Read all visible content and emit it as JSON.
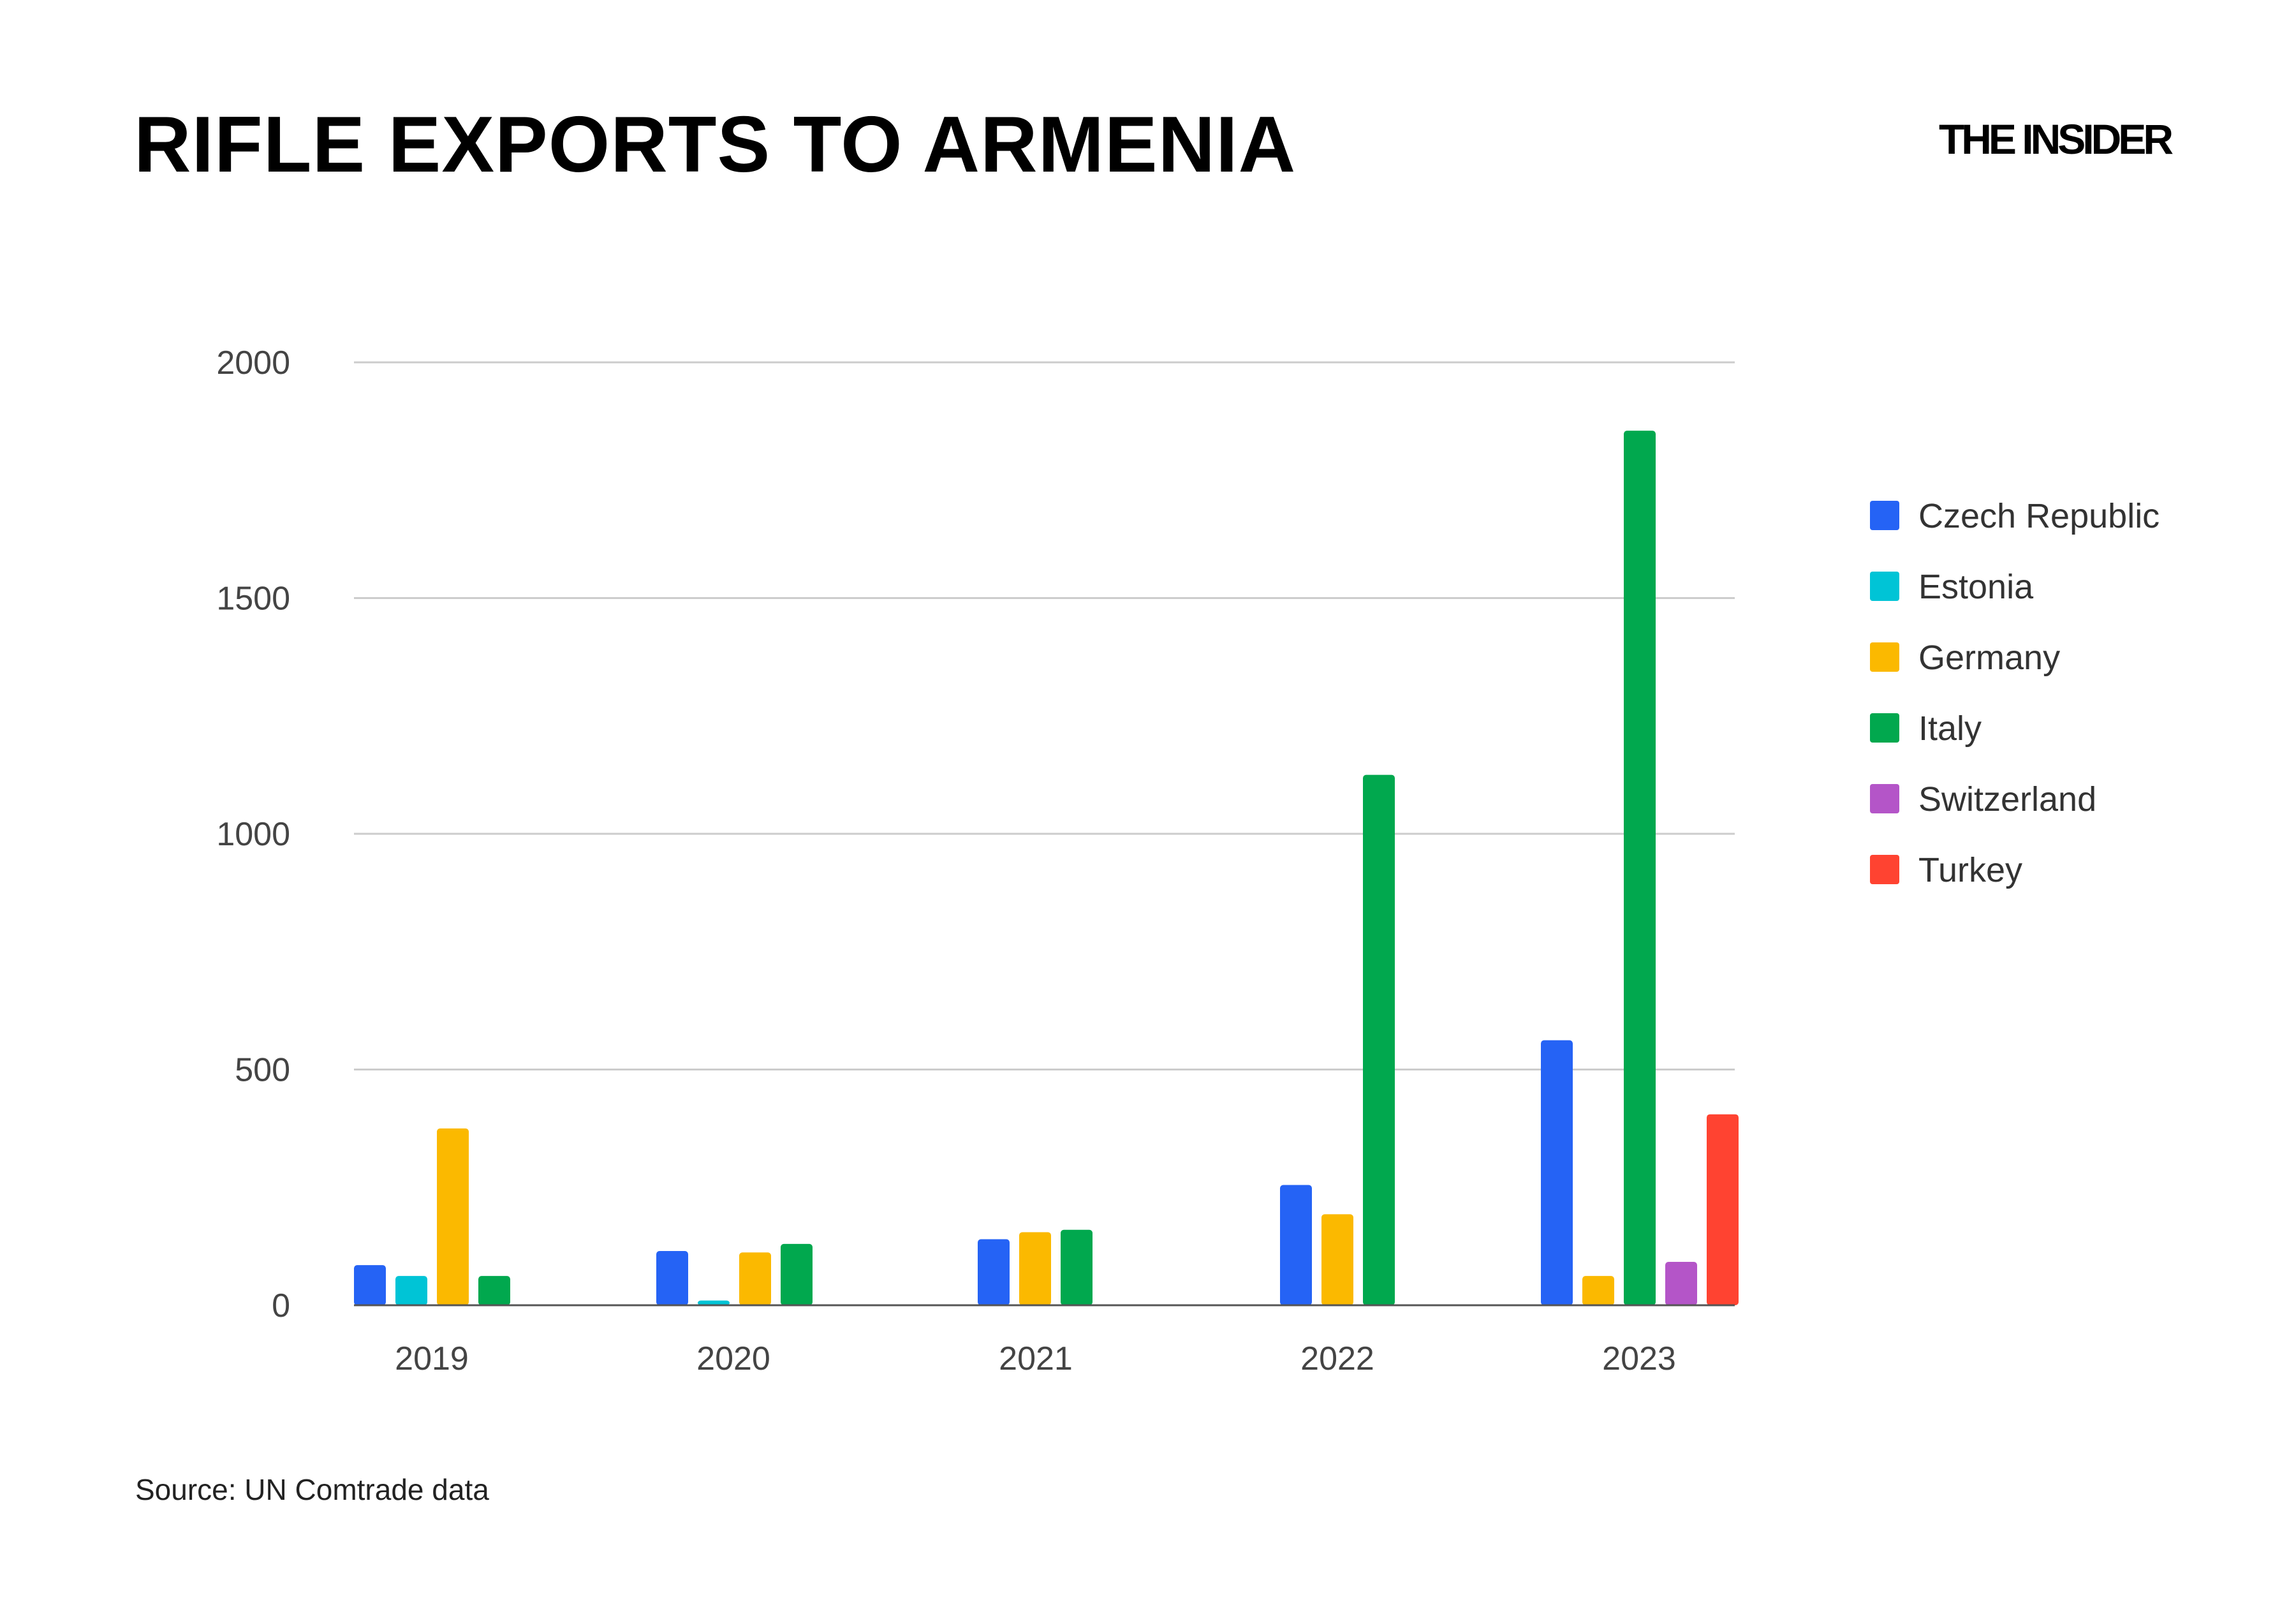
{
  "header": {
    "title": "RIFLE EXPORTS TO ARMENIA",
    "brand": "THE INSIDER"
  },
  "footer": {
    "source": "Source: UN Comtrade data"
  },
  "chart_data": {
    "type": "bar",
    "title": "RIFLE EXPORTS TO ARMENIA",
    "xlabel": "",
    "ylabel": "",
    "ylim": [
      0,
      2000
    ],
    "yticks": [
      0,
      500,
      1000,
      1500,
      2000
    ],
    "grid": true,
    "legend_position": "right",
    "groups": [
      {
        "label": "2019",
        "bars": [
          {
            "series": "Czech Republic",
            "value": 85
          },
          {
            "series": "Estonia",
            "value": 62
          },
          {
            "series": "Germany",
            "value": 375
          },
          {
            "series": "Italy",
            "value": 62
          }
        ]
      },
      {
        "label": "2020",
        "bars": [
          {
            "series": "Czech Republic",
            "value": 115
          },
          {
            "series": "Estonia",
            "value": 10
          },
          {
            "series": "Germany",
            "value": 112
          },
          {
            "series": "Italy",
            "value": 130
          }
        ]
      },
      {
        "label": "2021",
        "bars": [
          {
            "series": "Czech Republic",
            "value": 140
          },
          {
            "series": "Germany",
            "value": 155
          },
          {
            "series": "Italy",
            "value": 160
          }
        ]
      },
      {
        "label": "2022",
        "bars": [
          {
            "series": "Czech Republic",
            "value": 255
          },
          {
            "series": "Germany",
            "value": 193
          },
          {
            "series": "Italy",
            "value": 1125
          }
        ]
      },
      {
        "label": "2023",
        "bars": [
          {
            "series": "Czech Republic",
            "value": 562
          },
          {
            "series": "Germany",
            "value": 62
          },
          {
            "series": "Italy",
            "value": 1855
          },
          {
            "series": "Switzerland",
            "value": 92
          },
          {
            "series": "Turkey",
            "value": 405
          }
        ]
      }
    ],
    "series": [
      {
        "name": "Czech Republic",
        "color": "#2563f5"
      },
      {
        "name": "Estonia",
        "color": "#00c4d6"
      },
      {
        "name": "Germany",
        "color": "#fbb900"
      },
      {
        "name": "Italy",
        "color": "#01a84e"
      },
      {
        "name": "Switzerland",
        "color": "#b455c8"
      },
      {
        "name": "Turkey",
        "color": "#ff4331"
      }
    ]
  }
}
